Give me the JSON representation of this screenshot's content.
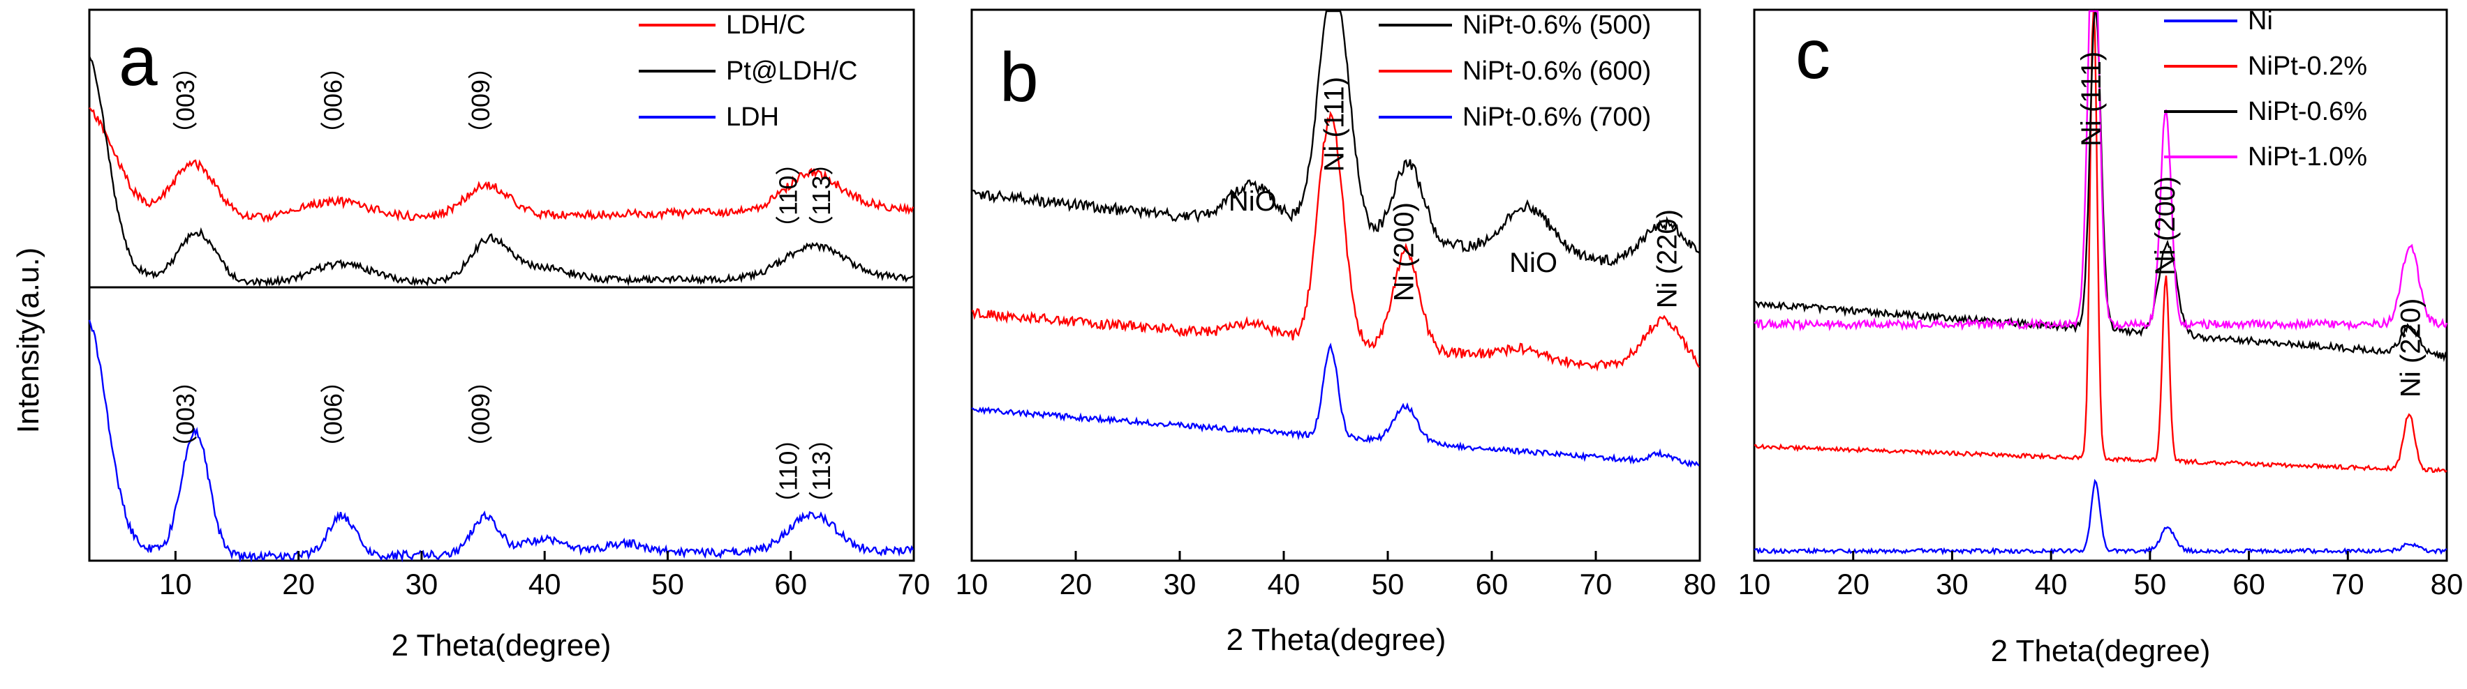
{
  "y_axis_label": "Intensity(a.u.)",
  "chart_data": [
    {
      "panel": "a",
      "type": "line",
      "xlabel": "2 Theta(degree)",
      "ylabel": "Intensity(a.u.)",
      "xlim": [
        3,
        70
      ],
      "ticks": [
        10,
        20,
        30,
        40,
        50,
        60,
        70
      ],
      "tick_labels": [
        "10",
        "20",
        "30",
        "40",
        "50",
        "60",
        "70"
      ],
      "legend_position": "top-right",
      "subplots": [
        {
          "position": "upper",
          "series": [
            {
              "name": "LDH/C",
              "color": "#ff0000",
              "peaks": [
                [
                  11.5,
                  0.9
                ],
                [
                  22.8,
                  0.28
                ],
                [
                  35.3,
                  0.5
                ],
                [
                  61.5,
                  0.35
                ],
                [
                  62.5,
                  0.28
                ]
              ]
            },
            {
              "name": "Pt@LDH/C",
              "color": "#000000",
              "peaks": [
                [
                  11.8,
                  0.75
                ],
                [
                  23.5,
                  0.28
                ],
                [
                  35.5,
                  0.6
                ],
                [
                  39.5,
                  0.2
                ],
                [
                  61.5,
                  0.28
                ],
                [
                  62.5,
                  0.22
                ]
              ]
            }
          ],
          "annotations": [
            {
              "text": "（003）",
              "x": 11.5
            },
            {
              "text": "（006）",
              "x": 23.5
            },
            {
              "text": "（009）",
              "x": 35.5
            },
            {
              "text": "（110）",
              "x": 60.5
            },
            {
              "text": "（113）",
              "x": 63.2
            }
          ]
        },
        {
          "position": "lower",
          "series": [
            {
              "name": "LDH",
              "color": "#0000ff",
              "peaks": [
                [
                  11.6,
                  1.0
                ],
                [
                  23.5,
                  0.32
                ],
                [
                  35.2,
                  0.3
                ],
                [
                  40.0,
                  0.12
                ],
                [
                  46.5,
                  0.08
                ],
                [
                  61.0,
                  0.14
                ],
                [
                  62.3,
                  0.18
                ]
              ]
            }
          ],
          "annotations": [
            {
              "text": "（003）",
              "x": 11.5
            },
            {
              "text": "（006）",
              "x": 23.5
            },
            {
              "text": "（009）",
              "x": 35.5
            },
            {
              "text": "（110）",
              "x": 60.5
            },
            {
              "text": "（113）",
              "x": 63.2
            }
          ]
        }
      ]
    },
    {
      "panel": "b",
      "type": "line",
      "xlabel": "2 Theta(degree)",
      "xlim": [
        10,
        80
      ],
      "ticks": [
        10,
        20,
        30,
        40,
        50,
        60,
        70,
        80
      ],
      "tick_labels": [
        "10",
        "20",
        "30",
        "40",
        "50",
        "60",
        "70",
        "80"
      ],
      "legend_position": "top-right",
      "series": [
        {
          "name": "NiPt-0.6% (500)",
          "color": "#000000",
          "peaks": [
            [
              37.0,
              0.15
            ],
            [
              44.8,
              1.0
            ],
            [
              52.0,
              0.3
            ],
            [
              63.5,
              0.18
            ],
            [
              76.8,
              0.17
            ]
          ]
        },
        {
          "name": "NiPt-0.6% (600)",
          "color": "#ff0000",
          "peaks": [
            [
              37.0,
              0.05
            ],
            [
              44.5,
              0.92
            ],
            [
              51.8,
              0.4
            ],
            [
              63.0,
              0.04
            ],
            [
              76.5,
              0.2
            ]
          ]
        },
        {
          "name": "NiPt-0.6% (700)",
          "color": "#0000ff",
          "peaks": [
            [
              44.5,
              0.44
            ],
            [
              51.7,
              0.18
            ],
            [
              76.2,
              0.04
            ]
          ]
        }
      ],
      "annotations": [
        {
          "text": "NiO",
          "x": 37.0
        },
        {
          "text": "Ni (111)",
          "x": 44.8
        },
        {
          "text": "Ni (200)",
          "x": 51.5
        },
        {
          "text": "NiO",
          "x": 64.0
        },
        {
          "text": "Ni (220)",
          "x": 76.8
        }
      ]
    },
    {
      "panel": "c",
      "type": "line",
      "xlabel": "2 Theta(degree)",
      "xlim": [
        10,
        80
      ],
      "ticks": [
        10,
        20,
        30,
        40,
        50,
        60,
        70,
        80
      ],
      "tick_labels": [
        "10",
        "20",
        "30",
        "40",
        "50",
        "60",
        "70",
        "80"
      ],
      "legend_position": "top-right",
      "series": [
        {
          "name": "Ni",
          "color": "#0000ff",
          "peaks": [
            [
              44.5,
              0.3
            ],
            [
              51.8,
              0.1
            ],
            [
              76.3,
              0.03
            ]
          ]
        },
        {
          "name": "NiPt-0.2%",
          "color": "#ff0000",
          "peaks": [
            [
              44.3,
              1.0
            ],
            [
              51.6,
              0.4
            ],
            [
              76.2,
              0.12
            ]
          ]
        },
        {
          "name": "NiPt-0.6%",
          "color": "#000000",
          "peaks": [
            [
              44.5,
              0.98
            ],
            [
              51.8,
              0.28
            ],
            [
              76.3,
              0.08
            ]
          ]
        },
        {
          "name": "NiPt-1.0%",
          "color": "#ff00ff",
          "peaks": [
            [
              44.3,
              1.0
            ],
            [
              51.6,
              0.5
            ],
            [
              76.3,
              0.18
            ]
          ]
        }
      ],
      "annotations": [
        {
          "text": "Ni (111)",
          "x": 44.0
        },
        {
          "text": "Ni (200)",
          "x": 51.5
        },
        {
          "text": "Ni (220)",
          "x": 76.3
        }
      ]
    }
  ]
}
